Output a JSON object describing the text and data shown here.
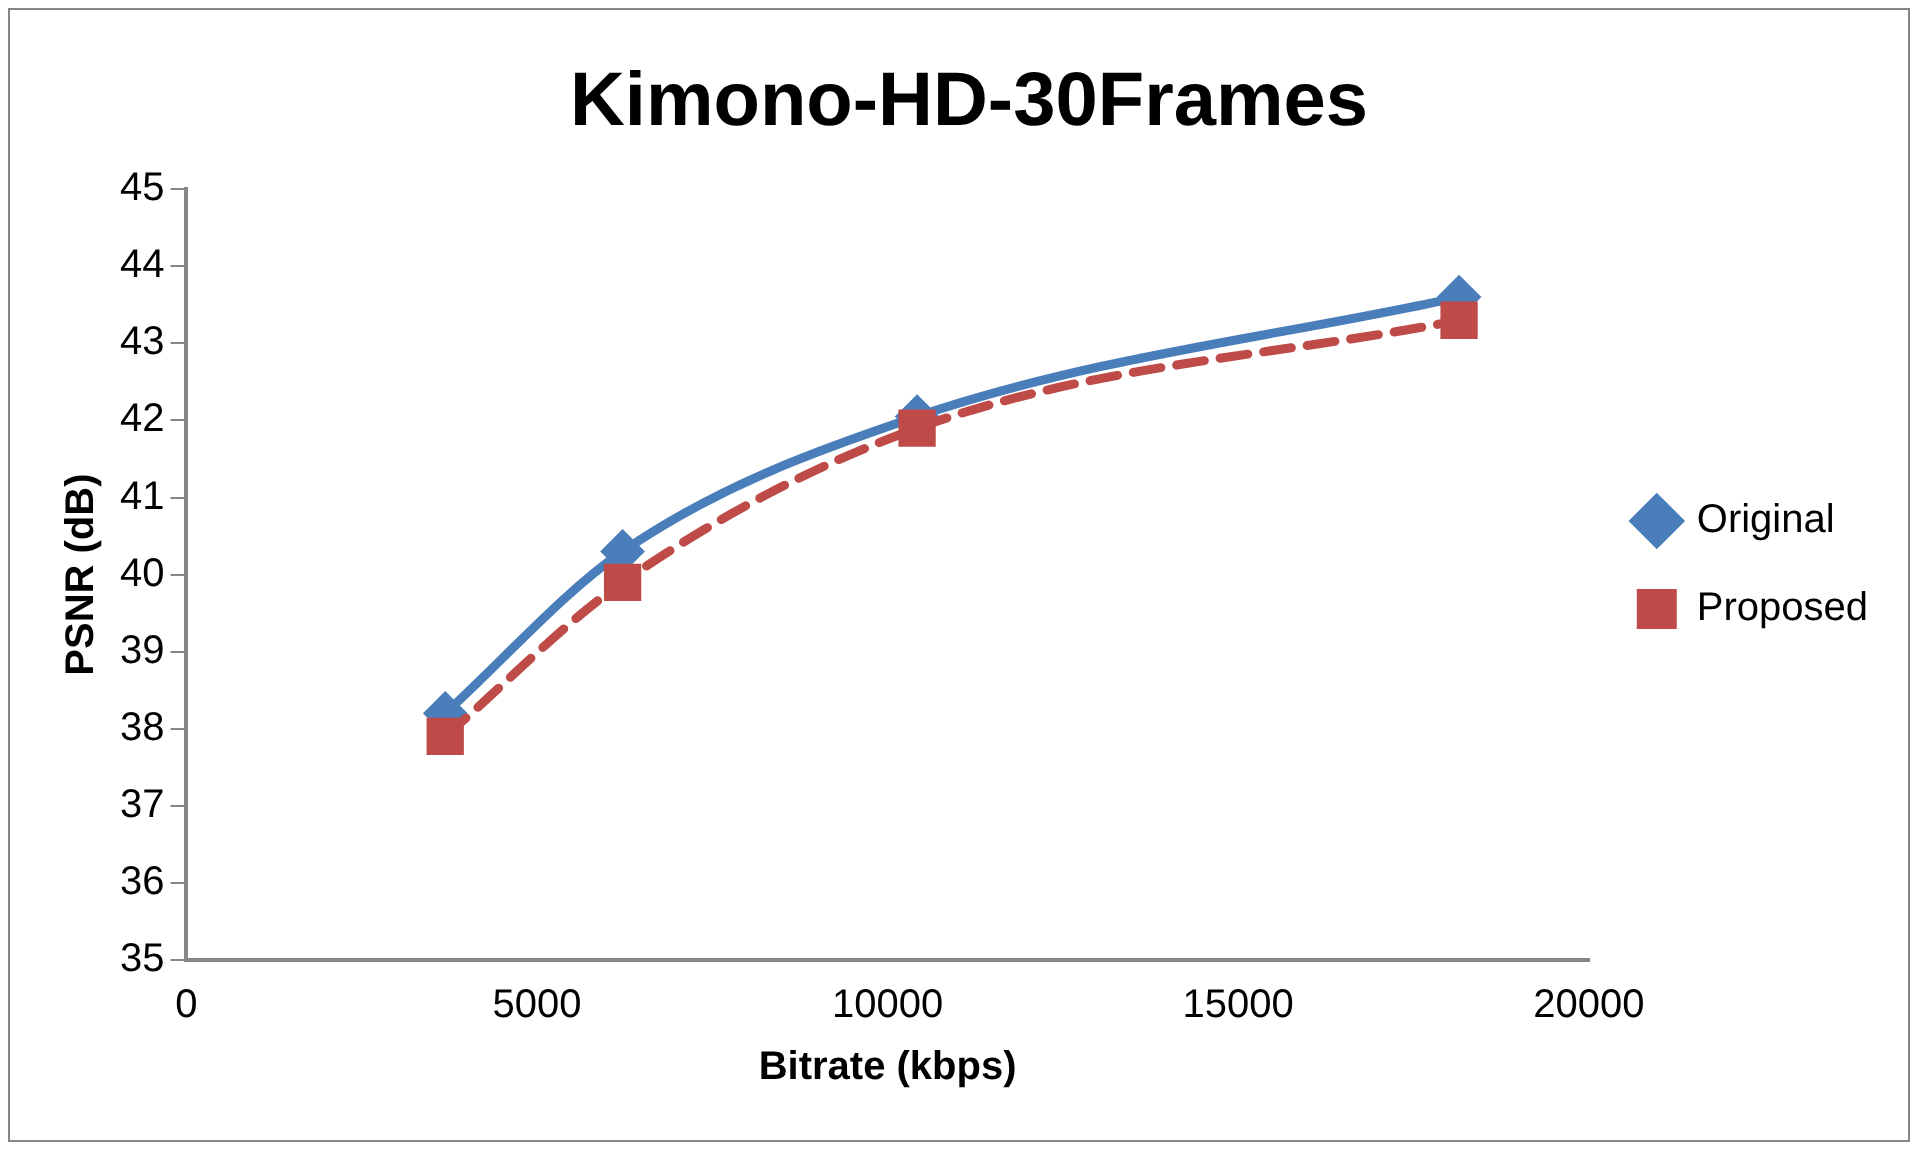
{
  "chart_data": {
    "type": "line",
    "title": "Kimono-HD-30Frames",
    "xlabel": "Bitrate (kbps)",
    "ylabel": "PSNR (dB)",
    "xlim": [
      0,
      20000
    ],
    "xticks": [
      0,
      5000,
      10000,
      15000,
      20000
    ],
    "ylim": [
      35,
      45
    ],
    "yticks": [
      35,
      36,
      37,
      38,
      39,
      40,
      41,
      42,
      43,
      44,
      45
    ],
    "grid": false,
    "legend": "right",
    "series": [
      {
        "name": "Original",
        "color": "#4a7ebb",
        "x": [
          3690,
          6220,
          10420,
          18150
        ],
        "values": [
          38.2,
          40.3,
          42.05,
          43.6
        ],
        "marker": "diamond",
        "line_style": "solid"
      },
      {
        "name": "Proposed",
        "color": "#be4b48",
        "x": [
          3690,
          6220,
          10420,
          18150
        ],
        "values": [
          37.9,
          39.9,
          41.9,
          43.3
        ],
        "marker": "square",
        "line_style": "dashed"
      }
    ]
  }
}
